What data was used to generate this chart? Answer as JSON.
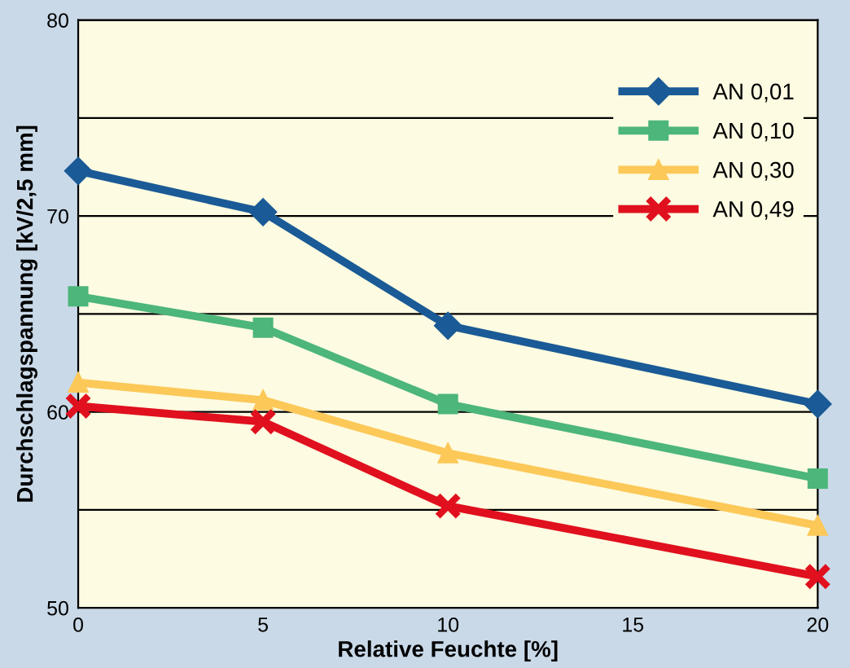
{
  "chart_data": {
    "type": "line",
    "xlabel": "Relative Feuchte [%]",
    "ylabel": "Durchschlagspannung [kV/2,5 mm]",
    "x": [
      0,
      5,
      10,
      20
    ],
    "xlim": [
      0,
      20
    ],
    "xticks": [
      0,
      5,
      10,
      15,
      20
    ],
    "ylim": [
      50,
      80
    ],
    "yticks": [
      50,
      {
        "value": 55,
        "label": null
      },
      60,
      {
        "value": 65,
        "label": null
      },
      70,
      {
        "value": 75,
        "label": null
      },
      80
    ],
    "grid": "y",
    "legend": "top right",
    "series": [
      {
        "name": "AN 0,01",
        "color": "#1a5a96",
        "marker": "diamond",
        "values": [
          72.3,
          70.2,
          64.4,
          60.4
        ]
      },
      {
        "name": "AN 0,10",
        "color": "#4db67a",
        "marker": "square",
        "values": [
          65.9,
          64.3,
          60.4,
          56.6
        ]
      },
      {
        "name": "AN 0,30",
        "color": "#fcc858",
        "marker": "triangle",
        "values": [
          61.5,
          60.6,
          57.9,
          54.2
        ]
      },
      {
        "name": "AN 0,49",
        "color": "#e0101e",
        "marker": "cross",
        "values": [
          60.3,
          59.5,
          55.2,
          51.6
        ]
      }
    ]
  }
}
